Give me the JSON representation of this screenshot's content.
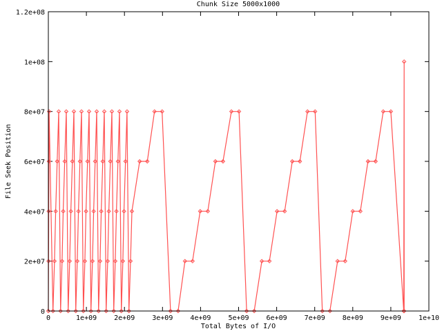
{
  "chart_data": {
    "type": "line",
    "title": "Chunk Size 5000x1000",
    "xlabel": "Total Bytes of I/O",
    "ylabel": "File Seek Position",
    "xlim": [
      0,
      10000000000.0
    ],
    "ylim": [
      0,
      120000000.0
    ],
    "x_ticks": [
      0,
      1000000000.0,
      2000000000.0,
      3000000000.0,
      4000000000.0,
      5000000000.0,
      6000000000.0,
      7000000000.0,
      8000000000.0,
      9000000000.0,
      10000000000.0
    ],
    "x_tick_labels": [
      "0",
      "1e+09",
      "2e+09",
      "3e+09",
      "4e+09",
      "5e+09",
      "6e+09",
      "7e+09",
      "8e+09",
      "9e+09",
      "1e+10"
    ],
    "y_ticks": [
      0,
      20000000.0,
      40000000.0,
      60000000.0,
      80000000.0,
      100000000.0,
      120000000.0
    ],
    "y_tick_labels": [
      "0",
      "2e+07",
      "4e+07",
      "6e+07",
      "8e+07",
      "1e+08",
      "1.2e+08"
    ],
    "grid": false,
    "legend": "none",
    "color": "#ff5050",
    "series": [
      {
        "x": [
          0,
          5000000.0,
          10000000.0,
          15000000.0,
          20000000.0,
          122000000.0,
          162000000.0,
          192000000.0,
          232000000.0,
          272000000.0,
          321000000.0,
          361000000.0,
          391000000.0,
          431000000.0,
          471000000.0,
          521000000.0,
          561000000.0,
          591000000.0,
          631000000.0,
          671000000.0,
          721000000.0,
          761000000.0,
          791000000.0,
          831000000.0,
          871000000.0,
          920000000.0,
          960000000.0,
          990000000.0,
          1030000000.0,
          1070000000.0,
          1120000000.0,
          1160000000.0,
          1190000000.0,
          1230000000.0,
          1270000000.0,
          1320000000.0,
          1360000000.0,
          1390000000.0,
          1430000000.0,
          1470000000.0,
          1519000000.0,
          1559000000.0,
          1589000000.0,
          1629000000.0,
          1669000000.0,
          1719000000.0,
          1759000000.0,
          1789000000.0,
          1829000000.0,
          1869000000.0,
          1918000000.0,
          1958000000.0,
          1988000000.0,
          2028000000.0,
          2068000000.0,
          2118000000.0,
          2160000000.0,
          2196000000.0,
          2400000000.0,
          2600000000.0,
          2790000000.0,
          2990000000.0,
          3210000000.0,
          3410000000.0,
          3590000000.0,
          3790000000.0,
          3990000000.0,
          4190000000.0,
          4390000000.0,
          4590000000.0,
          4810000000.0,
          5010000000.0,
          5210000000.0,
          5410000000.0,
          5610000000.0,
          5810000000.0,
          6010000000.0,
          6210000000.0,
          6410000000.0,
          6610000000.0,
          6810000000.0,
          7010000000.0,
          7200000000.0,
          7400000000.0,
          7600000000.0,
          7800000000.0,
          8000000000.0,
          8200000000.0,
          8400000000.0,
          8600000000.0,
          8800000000.0,
          9000000000.0,
          9340000000.0,
          9350000000.0,
          9350000000.0
        ],
        "y": [
          0,
          20000000.0,
          40000000.0,
          60000000.0,
          80000000.0,
          0,
          20000000.0,
          40000000.0,
          60000000.0,
          80000000.0,
          0,
          20000000.0,
          40000000.0,
          60000000.0,
          80000000.0,
          0,
          20000000.0,
          40000000.0,
          60000000.0,
          80000000.0,
          0,
          20000000.0,
          40000000.0,
          60000000.0,
          80000000.0,
          0,
          20000000.0,
          40000000.0,
          60000000.0,
          80000000.0,
          0,
          20000000.0,
          40000000.0,
          60000000.0,
          80000000.0,
          0,
          20000000.0,
          40000000.0,
          60000000.0,
          80000000.0,
          0,
          20000000.0,
          40000000.0,
          60000000.0,
          80000000.0,
          0,
          20000000.0,
          40000000.0,
          60000000.0,
          80000000.0,
          0,
          20000000.0,
          40000000.0,
          60000000.0,
          80000000.0,
          0,
          20000000.0,
          40000000.0,
          60000000.0,
          60000000.0,
          80000000.0,
          80000000.0,
          0,
          0,
          20000000.0,
          20000000.0,
          40000000.0,
          40000000.0,
          60000000.0,
          60000000.0,
          80000000.0,
          80000000.0,
          0,
          0,
          20000000.0,
          20000000.0,
          40000000.0,
          40000000.0,
          60000000.0,
          60000000.0,
          80000000.0,
          80000000.0,
          0,
          0,
          20000000.0,
          20000000.0,
          40000000.0,
          40000000.0,
          60000000.0,
          60000000.0,
          80000000.0,
          80000000.0,
          0,
          100000000.0,
          0
        ]
      }
    ]
  }
}
